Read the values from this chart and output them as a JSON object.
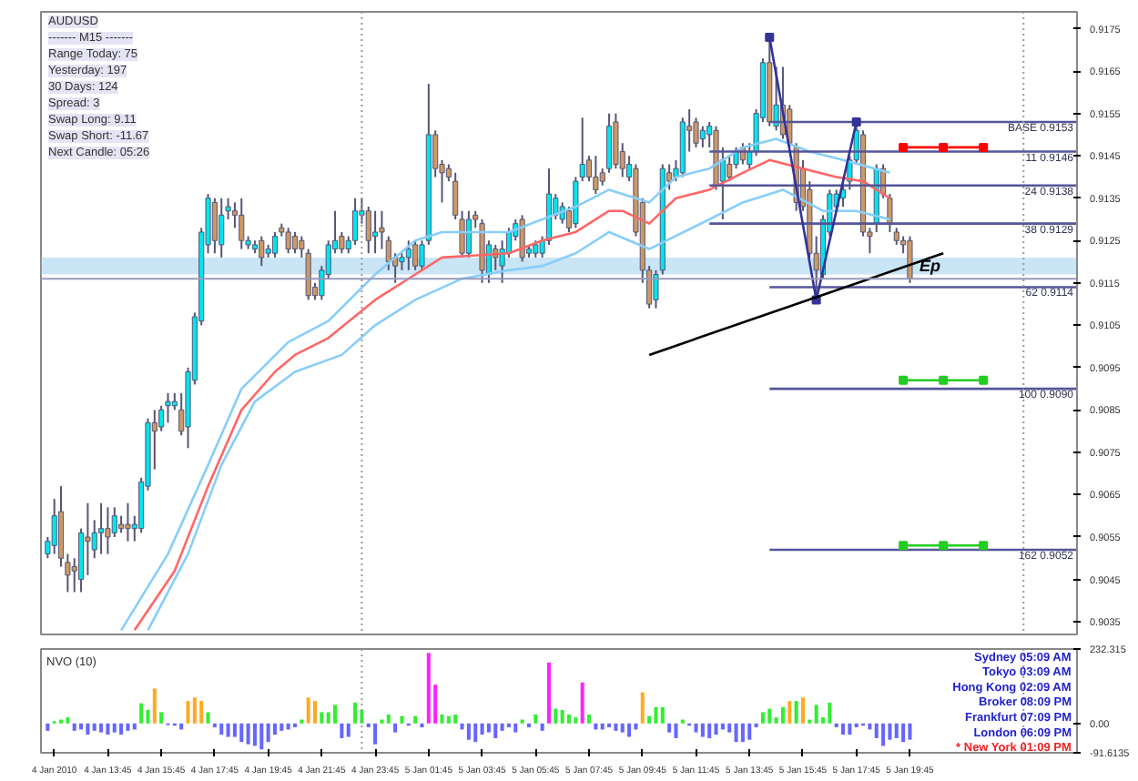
{
  "chart_data": [
    {
      "type": "candlestick",
      "x": [
        "2010-01-04T11:30",
        "2010-01-04T11:45",
        "2010-01-04T12:00",
        "2010-01-04T12:15",
        "2010-01-04T12:30",
        "2010-01-04T12:45",
        "2010-01-04T13:00",
        "2010-01-04T13:15",
        "2010-01-04T13:30",
        "2010-01-04T13:45",
        "2010-01-04T14:00",
        "2010-01-04T14:15",
        "2010-01-04T14:30",
        "2010-01-04T14:45",
        "2010-01-04T15:00",
        "2010-01-04T15:15",
        "2010-01-04T15:30",
        "2010-01-04T15:45",
        "2010-01-04T16:00",
        "2010-01-04T16:15",
        "2010-01-04T16:30",
        "2010-01-04T16:45",
        "2010-01-04T17:00",
        "2010-01-04T17:15",
        "2010-01-04T17:30",
        "2010-01-04T17:45",
        "2010-01-04T18:00",
        "2010-01-04T18:15",
        "2010-01-04T18:30",
        "2010-01-04T18:45",
        "2010-01-04T19:00",
        "2010-01-04T19:15",
        "2010-01-04T19:30",
        "2010-01-04T19:45",
        "2010-01-04T20:00",
        "2010-01-04T20:15",
        "2010-01-04T20:30",
        "2010-01-04T20:45",
        "2010-01-04T21:00",
        "2010-01-04T21:15",
        "2010-01-04T21:30",
        "2010-01-04T21:45",
        "2010-01-04T22:00",
        "2010-01-04T22:15",
        "2010-01-04T22:30",
        "2010-01-04T22:45",
        "2010-01-04T23:00",
        "2010-01-04T23:15",
        "2010-01-04T23:30",
        "2010-01-04T23:45",
        "2010-01-05T00:00",
        "2010-01-05T00:15",
        "2010-01-05T00:30",
        "2010-01-05T00:45",
        "2010-01-05T01:00",
        "2010-01-05T01:15",
        "2010-01-05T01:30",
        "2010-01-05T01:45",
        "2010-01-05T02:00",
        "2010-01-05T02:15",
        "2010-01-05T02:30",
        "2010-01-05T02:45",
        "2010-01-05T03:00",
        "2010-01-05T03:15",
        "2010-01-05T03:30",
        "2010-01-05T03:45",
        "2010-01-05T04:00",
        "2010-01-05T04:15",
        "2010-01-05T04:30",
        "2010-01-05T04:45",
        "2010-01-05T05:00",
        "2010-01-05T05:15",
        "2010-01-05T05:30",
        "2010-01-05T05:45",
        "2010-01-05T06:00",
        "2010-01-05T06:15",
        "2010-01-05T06:30",
        "2010-01-05T06:45",
        "2010-01-05T07:00",
        "2010-01-05T07:15",
        "2010-01-05T07:30",
        "2010-01-05T07:45",
        "2010-01-05T08:00",
        "2010-01-05T08:15",
        "2010-01-05T08:30",
        "2010-01-05T08:45",
        "2010-01-05T09:00",
        "2010-01-05T09:15",
        "2010-01-05T09:30",
        "2010-01-05T09:45",
        "2010-01-05T10:00",
        "2010-01-05T10:15",
        "2010-01-05T10:30",
        "2010-01-05T10:45",
        "2010-01-05T11:00",
        "2010-01-05T11:15",
        "2010-01-05T11:30",
        "2010-01-05T11:45",
        "2010-01-05T12:00",
        "2010-01-05T12:15",
        "2010-01-05T12:30",
        "2010-01-05T12:45",
        "2010-01-05T13:00",
        "2010-01-05T13:15",
        "2010-01-05T13:30",
        "2010-01-05T13:45",
        "2010-01-05T14:00",
        "2010-01-05T14:15",
        "2010-01-05T14:30",
        "2010-01-05T14:45",
        "2010-01-05T15:00",
        "2010-01-05T15:15",
        "2010-01-05T15:30",
        "2010-01-05T15:45",
        "2010-01-05T16:00",
        "2010-01-05T16:15",
        "2010-01-05T16:30",
        "2010-01-05T16:45",
        "2010-01-05T17:00",
        "2010-01-05T17:15",
        "2010-01-05T17:30",
        "2010-01-05T17:45",
        "2010-01-05T18:00",
        "2010-01-05T18:15",
        "2010-01-05T18:30",
        "2010-01-05T18:45",
        "2010-01-05T19:00",
        "2010-01-05T19:15",
        "2010-01-05T19:30",
        "2010-01-05T19:45"
      ],
      "ohlc": [
        [
          0.9051,
          0.9055,
          0.905,
          0.9054
        ],
        [
          0.9053,
          0.9064,
          0.9051,
          0.906
        ],
        [
          0.9061,
          0.9067,
          0.9048,
          0.905
        ],
        [
          0.9049,
          0.9051,
          0.9042,
          0.9046
        ],
        [
          0.9048,
          0.905,
          0.9042,
          0.9047
        ],
        [
          0.9045,
          0.9057,
          0.9042,
          0.9056
        ],
        [
          0.9055,
          0.9063,
          0.9046,
          0.9054
        ],
        [
          0.9052,
          0.9059,
          0.905,
          0.9056
        ],
        [
          0.9056,
          0.9063,
          0.9051,
          0.9057
        ],
        [
          0.9057,
          0.9062,
          0.9051,
          0.9055
        ],
        [
          0.9056,
          0.9062,
          0.9055,
          0.906
        ],
        [
          0.9058,
          0.906,
          0.9056,
          0.9057
        ],
        [
          0.9058,
          0.9063,
          0.9054,
          0.9057
        ],
        [
          0.9057,
          0.906,
          0.9054,
          0.9058
        ],
        [
          0.9057,
          0.9069,
          0.9056,
          0.9068
        ],
        [
          0.9067,
          0.9083,
          0.9066,
          0.9082
        ],
        [
          0.9082,
          0.9085,
          0.9071,
          0.908
        ],
        [
          0.9081,
          0.9086,
          0.908,
          0.9085
        ],
        [
          0.9086,
          0.9089,
          0.9082,
          0.9087
        ],
        [
          0.9086,
          0.9089,
          0.9085,
          0.9087
        ],
        [
          0.9085,
          0.9089,
          0.9079,
          0.908
        ],
        [
          0.9081,
          0.9095,
          0.9076,
          0.9094
        ],
        [
          0.9092,
          0.9108,
          0.9091,
          0.9107
        ],
        [
          0.9106,
          0.9128,
          0.9105,
          0.9127
        ],
        [
          0.9124,
          0.9136,
          0.9122,
          0.9135
        ],
        [
          0.9134,
          0.9135,
          0.9122,
          0.9125
        ],
        [
          0.9124,
          0.9135,
          0.9121,
          0.9131
        ],
        [
          0.9132,
          0.9135,
          0.913,
          0.9133
        ],
        [
          0.9132,
          0.9134,
          0.9128,
          0.9131
        ],
        [
          0.9131,
          0.9135,
          0.9123,
          0.9125
        ],
        [
          0.9124,
          0.9126,
          0.9123,
          0.9125
        ],
        [
          0.9123,
          0.9125,
          0.9122,
          0.9124
        ],
        [
          0.9125,
          0.9126,
          0.9119,
          0.9121
        ],
        [
          0.9122,
          0.9124,
          0.9121,
          0.9123
        ],
        [
          0.9122,
          0.9127,
          0.9121,
          0.9126
        ],
        [
          0.9128,
          0.9129,
          0.9126,
          0.9127
        ],
        [
          0.9127,
          0.9128,
          0.9122,
          0.9123
        ],
        [
          0.9126,
          0.9127,
          0.9122,
          0.9123
        ],
        [
          0.9125,
          0.9126,
          0.9121,
          0.9123
        ],
        [
          0.9122,
          0.9123,
          0.9111,
          0.9112
        ],
        [
          0.9114,
          0.9115,
          0.9111,
          0.9112
        ],
        [
          0.9112,
          0.9119,
          0.9111,
          0.9118
        ],
        [
          0.9117,
          0.9125,
          0.9116,
          0.9124
        ],
        [
          0.9123,
          0.9132,
          0.9122,
          0.9125
        ],
        [
          0.9126,
          0.9127,
          0.9122,
          0.9123
        ],
        [
          0.9123,
          0.9126,
          0.9122,
          0.9125
        ],
        [
          0.9125,
          0.9135,
          0.9124,
          0.9132
        ],
        [
          0.9131,
          0.9135,
          0.9129,
          0.9132
        ],
        [
          0.9132,
          0.9133,
          0.9122,
          0.9125
        ],
        [
          0.9126,
          0.9132,
          0.9122,
          0.9127
        ],
        [
          0.9128,
          0.9132,
          0.9123,
          0.9127
        ],
        [
          0.9125,
          0.9126,
          0.9118,
          0.912
        ],
        [
          0.9121,
          0.9122,
          0.9115,
          0.9119
        ],
        [
          0.912,
          0.9122,
          0.9118,
          0.9121
        ],
        [
          0.9121,
          0.9125,
          0.9118,
          0.9123
        ],
        [
          0.9124,
          0.9125,
          0.9118,
          0.9119
        ],
        [
          0.9119,
          0.9125,
          0.9118,
          0.9124
        ],
        [
          0.9125,
          0.9162,
          0.9124,
          0.915
        ],
        [
          0.915,
          0.9151,
          0.914,
          0.9142
        ],
        [
          0.9143,
          0.9144,
          0.9134,
          0.9141
        ],
        [
          0.9142,
          0.9143,
          0.9139,
          0.914
        ],
        [
          0.9139,
          0.9141,
          0.913,
          0.9131
        ],
        [
          0.913,
          0.9132,
          0.9121,
          0.9122
        ],
        [
          0.9122,
          0.9132,
          0.9121,
          0.913
        ],
        [
          0.9131,
          0.9132,
          0.9128,
          0.913
        ],
        [
          0.9129,
          0.913,
          0.9115,
          0.9118
        ],
        [
          0.9117,
          0.9125,
          0.9115,
          0.9124
        ],
        [
          0.9123,
          0.9124,
          0.9118,
          0.9121
        ],
        [
          0.9119,
          0.9125,
          0.9115,
          0.9123
        ],
        [
          0.9122,
          0.9128,
          0.9121,
          0.9127
        ],
        [
          0.9126,
          0.913,
          0.9125,
          0.9129
        ],
        [
          0.913,
          0.9131,
          0.912,
          0.9121
        ],
        [
          0.9122,
          0.9124,
          0.9121,
          0.9123
        ],
        [
          0.9122,
          0.9125,
          0.9121,
          0.9124
        ],
        [
          0.9122,
          0.9126,
          0.9121,
          0.9125
        ],
        [
          0.9125,
          0.9142,
          0.9124,
          0.9136
        ],
        [
          0.9131,
          0.9136,
          0.913,
          0.9135
        ],
        [
          0.913,
          0.9134,
          0.9129,
          0.9133
        ],
        [
          0.9132,
          0.9133,
          0.9127,
          0.9128
        ],
        [
          0.9129,
          0.914,
          0.9128,
          0.9139
        ],
        [
          0.914,
          0.9154,
          0.9139,
          0.9143
        ],
        [
          0.9144,
          0.9145,
          0.9139,
          0.914
        ],
        [
          0.914,
          0.9145,
          0.9136,
          0.9137
        ],
        [
          0.9141,
          0.9142,
          0.9138,
          0.9139
        ],
        [
          0.9142,
          0.9155,
          0.9141,
          0.9152
        ],
        [
          0.9153,
          0.9155,
          0.9142,
          0.9143
        ],
        [
          0.9146,
          0.9148,
          0.914,
          0.9142
        ],
        [
          0.914,
          0.9145,
          0.9139,
          0.9143
        ],
        [
          0.9142,
          0.9143,
          0.9126,
          0.9127
        ],
        [
          0.9134,
          0.9135,
          0.9115,
          0.9118
        ],
        [
          0.9118,
          0.9119,
          0.9109,
          0.911
        ],
        [
          0.9111,
          0.9118,
          0.9109,
          0.9117
        ],
        [
          0.9118,
          0.9143,
          0.9117,
          0.9142
        ],
        [
          0.9141,
          0.9143,
          0.9137,
          0.9139
        ],
        [
          0.914,
          0.9144,
          0.9139,
          0.9142
        ],
        [
          0.9141,
          0.9154,
          0.914,
          0.9153
        ],
        [
          0.9152,
          0.9156,
          0.9146,
          0.9151
        ],
        [
          0.9153,
          0.9154,
          0.9147,
          0.9148
        ],
        [
          0.9149,
          0.9152,
          0.9147,
          0.9151
        ],
        [
          0.915,
          0.9153,
          0.9147,
          0.9152
        ],
        [
          0.9151,
          0.9152,
          0.9137,
          0.9138
        ],
        [
          0.9139,
          0.9147,
          0.913,
          0.9144
        ],
        [
          0.9143,
          0.9145,
          0.9139,
          0.914
        ],
        [
          0.9143,
          0.9147,
          0.9142,
          0.9146
        ],
        [
          0.9147,
          0.9148,
          0.9143,
          0.9144
        ],
        [
          0.9143,
          0.9148,
          0.9142,
          0.9146
        ],
        [
          0.9146,
          0.9156,
          0.9145,
          0.9155
        ],
        [
          0.9154,
          0.9168,
          0.9153,
          0.9167
        ],
        [
          0.9167,
          0.9173,
          0.9152,
          0.9153
        ],
        [
          0.9152,
          0.9166,
          0.9151,
          0.9157
        ],
        [
          0.9157,
          0.9166,
          0.9149,
          0.915
        ],
        [
          0.9156,
          0.9157,
          0.9147,
          0.9148
        ],
        [
          0.9147,
          0.9148,
          0.9132,
          0.9134
        ],
        [
          0.9142,
          0.9144,
          0.9132,
          0.9133
        ],
        [
          0.9137,
          0.9139,
          0.9121,
          0.9122
        ],
        [
          0.9122,
          0.9126,
          0.9111,
          0.9118
        ],
        [
          0.9117,
          0.9131,
          0.9116,
          0.913
        ],
        [
          0.9127,
          0.9137,
          0.9126,
          0.9136
        ],
        [
          0.9133,
          0.9137,
          0.9132,
          0.9136
        ],
        [
          0.9135,
          0.9139,
          0.9133,
          0.9137
        ],
        [
          0.9139,
          0.9145,
          0.9137,
          0.9144
        ],
        [
          0.9144,
          0.9152,
          0.9143,
          0.9151
        ],
        [
          0.915,
          0.9151,
          0.9126,
          0.9127
        ],
        [
          0.9127,
          0.9128,
          0.9122,
          0.9126
        ],
        [
          0.9129,
          0.9143,
          0.9127,
          0.9142
        ],
        [
          0.9142,
          0.9143,
          0.9135,
          0.9136
        ],
        [
          0.9135,
          0.9136,
          0.9127,
          0.9129
        ],
        [
          0.9127,
          0.9128,
          0.9124,
          0.9125
        ],
        [
          0.9125,
          0.9126,
          0.9122,
          0.9124
        ],
        [
          0.9125,
          0.9126,
          0.9115,
          0.9116
        ]
      ],
      "colors": [
        "#00e5ee",
        "#00e5ee",
        "#cc9966",
        "#cc9966",
        "#cc9966",
        "#00e5ee",
        "#cc9966",
        "#00e5ee",
        "#00e5ee",
        "#cc9966",
        "#00e5ee",
        "#cc9966",
        "#cc9966",
        "#00e5ee",
        "#00e5ee",
        "#00e5ee",
        "#cc9966",
        "#00e5ee",
        "#00e5ee",
        "#00e5ee",
        "#cc9966",
        "#00e5ee",
        "#00e5ee",
        "#00e5ee",
        "#00e5ee",
        "#cc9966",
        "#00e5ee",
        "#00e5ee",
        "#cc9966",
        "#cc9966",
        "#00e5ee",
        "#00e5ee",
        "#cc9966",
        "#00e5ee",
        "#00e5ee",
        "#cc9966",
        "#cc9966",
        "#cc9966",
        "#cc9966",
        "#cc9966",
        "#cc9966",
        "#00e5ee",
        "#00e5ee",
        "#00e5ee",
        "#cc9966",
        "#00e5ee",
        "#00e5ee",
        "#00e5ee",
        "#cc9966",
        "#00e5ee",
        "#cc9966",
        "#cc9966",
        "#cc9966",
        "#00e5ee",
        "#00e5ee",
        "#cc9966",
        "#00e5ee",
        "#00e5ee",
        "#cc9966",
        "#cc9966",
        "#cc9966",
        "#cc9966",
        "#cc9966",
        "#00e5ee",
        "#cc9966",
        "#cc9966",
        "#00e5ee",
        "#cc9966",
        "#00e5ee",
        "#00e5ee",
        "#00e5ee",
        "#cc9966",
        "#00e5ee",
        "#00e5ee",
        "#00e5ee",
        "#00e5ee",
        "#00e5ee",
        "#00e5ee",
        "#cc9966",
        "#00e5ee",
        "#00e5ee",
        "#cc9966",
        "#cc9966",
        "#cc9966",
        "#00e5ee",
        "#cc9966",
        "#cc9966",
        "#00e5ee",
        "#cc9966",
        "#cc9966",
        "#cc9966",
        "#00e5ee",
        "#00e5ee",
        "#cc9966",
        "#00e5ee",
        "#00e5ee",
        "#cc9966",
        "#cc9966",
        "#00e5ee",
        "#00e5ee",
        "#cc9966",
        "#00e5ee",
        "#cc9966",
        "#00e5ee",
        "#cc9966",
        "#00e5ee",
        "#00e5ee",
        "#00e5ee",
        "#cc9966",
        "#00e5ee",
        "#cc9966",
        "#cc9966",
        "#cc9966",
        "#cc9966",
        "#cc9966",
        "#cc9966",
        "#00e5ee",
        "#00e5ee",
        "#00e5ee",
        "#00e5ee",
        "#00e5ee",
        "#00e5ee",
        "#cc9966",
        "#cc9966",
        "#00e5ee",
        "#cc9966",
        "#cc9966",
        "#cc9966",
        "#cc9966",
        "#cc9966"
      ],
      "xlim": [
        "2010-01-04T11:15",
        "2010-01-06T02:00"
      ],
      "ylim": [
        0.9032,
        0.9179
      ],
      "yticks": [
        0.9035,
        0.9045,
        0.9055,
        0.9065,
        0.9075,
        0.9085,
        0.9095,
        0.9105,
        0.9115,
        0.9125,
        0.9135,
        0.9145,
        0.9155,
        0.9165,
        0.9175
      ],
      "tick_labels": "y",
      "series": [
        {
          "type": "line",
          "color": "#87cefa",
          "x": [
            "2010-01-04T14:15",
            "2010-01-04T16:00",
            "2010-01-04T17:30",
            "2010-01-04T18:45",
            "2010-01-04T20:30",
            "2010-01-04T22:00",
            "2010-01-04T23:45",
            "2010-01-05T01:15",
            "2010-01-05T02:15",
            "2010-01-05T04:45",
            "2010-01-05T06:00",
            "2010-01-05T07:15",
            "2010-01-05T08:30",
            "2010-01-05T10:00",
            "2010-01-05T11:00",
            "2010-01-05T12:15",
            "2010-01-05T13:30",
            "2010-01-05T14:45",
            "2010-01-05T16:00",
            "2010-01-05T17:15",
            "2010-01-05T19:00"
          ],
          "values": [
            0.9033,
            0.9051,
            0.9072,
            0.909,
            0.9101,
            0.9106,
            0.9117,
            0.9125,
            0.9127,
            0.9127,
            0.913,
            0.9133,
            0.9137,
            0.9134,
            0.914,
            0.9142,
            0.9147,
            0.9149,
            0.9146,
            0.9144,
            0.9141
          ]
        },
        {
          "type": "line",
          "color": "#ff6666",
          "x": [
            "2010-01-04T14:45",
            "2010-01-04T16:15",
            "2010-01-04T17:30",
            "2010-01-04T18:45",
            "2010-01-04T20:00",
            "2010-01-04T20:45",
            "2010-01-04T22:00",
            "2010-01-04T23:45",
            "2010-01-05T01:15",
            "2010-01-05T02:15",
            "2010-01-05T04:45",
            "2010-01-05T06:00",
            "2010-01-05T07:15",
            "2010-01-05T08:30",
            "2010-01-05T09:00",
            "2010-01-05T10:00",
            "2010-01-05T11:00",
            "2010-01-05T12:15",
            "2010-01-05T13:30",
            "2010-01-05T14:30",
            "2010-01-05T15:45",
            "2010-01-05T17:00",
            "2010-01-05T18:00",
            "2010-01-05T19:00"
          ],
          "values": [
            0.9033,
            0.9047,
            0.9067,
            0.9085,
            0.9094,
            0.9098,
            0.9102,
            0.9111,
            0.9117,
            0.9121,
            0.9122,
            0.9125,
            0.9127,
            0.9132,
            0.9132,
            0.9129,
            0.9135,
            0.9137,
            0.9141,
            0.9144,
            0.9142,
            0.914,
            0.9139,
            0.9135
          ]
        },
        {
          "type": "line",
          "color": "#87cefa",
          "x": [
            "2010-01-04T15:15",
            "2010-01-04T16:45",
            "2010-01-04T18:00",
            "2010-01-04T19:15",
            "2010-01-04T20:45",
            "2010-01-04T22:30",
            "2010-01-04T23:45",
            "2010-01-05T01:15",
            "2010-01-05T03:00",
            "2010-01-05T04:45",
            "2010-01-05T06:00",
            "2010-01-05T07:15",
            "2010-01-05T08:30",
            "2010-01-05T10:00",
            "2010-01-05T12:15",
            "2010-01-05T13:30",
            "2010-01-05T15:00",
            "2010-01-05T16:30",
            "2010-01-05T17:45",
            "2010-01-05T19:00"
          ],
          "values": [
            0.9033,
            0.9051,
            0.9072,
            0.9087,
            0.9094,
            0.9098,
            0.9105,
            0.9111,
            0.9116,
            0.9118,
            0.9119,
            0.9122,
            0.9127,
            0.9123,
            0.913,
            0.9134,
            0.9137,
            0.9132,
            0.9132,
            0.913
          ]
        },
        {
          "type": "line",
          "name": "BASE 0.9153",
          "color": "#555599",
          "x": [
            "2010-01-05T14:30",
            "2010-01-06T02:00"
          ],
          "values": [
            0.9153,
            0.9153
          ]
        },
        {
          "type": "line",
          "name": "11 0.9146",
          "color": "#555599",
          "x": [
            "2010-01-05T12:15",
            "2010-01-06T02:00"
          ],
          "values": [
            0.9146,
            0.9146
          ]
        },
        {
          "type": "line",
          "name": "24 0.9138",
          "color": "#555599",
          "x": [
            "2010-01-05T12:15",
            "2010-01-06T02:00"
          ],
          "values": [
            0.9138,
            0.9138
          ]
        },
        {
          "type": "line",
          "name": "38 0.9129",
          "color": "#555599",
          "x": [
            "2010-01-05T12:15",
            "2010-01-06T02:00"
          ],
          "values": [
            0.9129,
            0.9129
          ]
        },
        {
          "type": "line",
          "name": "62 0.9114",
          "color": "#555599",
          "x": [
            "2010-01-05T14:30",
            "2010-01-06T02:00"
          ],
          "values": [
            0.9114,
            0.9114
          ]
        },
        {
          "type": "line",
          "name": "100 0.9090",
          "color": "#555599",
          "x": [
            "2010-01-05T14:30",
            "2010-01-06T02:00"
          ],
          "values": [
            0.909,
            0.909
          ]
        },
        {
          "type": "line",
          "name": "162 0.9052",
          "color": "#555599",
          "x": [
            "2010-01-05T14:30",
            "2010-01-06T02:00"
          ],
          "values": [
            0.9052,
            0.9052
          ]
        },
        {
          "type": "line",
          "color": "#ff0000",
          "marker": "square",
          "x": [
            "2010-01-05T19:30",
            "2010-01-05T21:00",
            "2010-01-05T22:30"
          ],
          "values": [
            0.9147,
            0.9147,
            0.9147
          ]
        },
        {
          "type": "line",
          "color": "#22cc22",
          "marker": "square",
          "x": [
            "2010-01-05T19:30",
            "2010-01-05T21:00",
            "2010-01-05T22:30"
          ],
          "values": [
            0.9092,
            0.9092,
            0.9092
          ]
        },
        {
          "type": "line",
          "color": "#22cc22",
          "marker": "square",
          "x": [
            "2010-01-05T19:30",
            "2010-01-05T21:00",
            "2010-01-05T22:30"
          ],
          "values": [
            0.9053,
            0.9053,
            0.9053
          ]
        },
        {
          "type": "line",
          "color": "#333399",
          "marker": "square",
          "x": [
            "2010-01-05T14:30",
            "2010-01-05T16:15",
            "2010-01-05T17:45"
          ],
          "values": [
            0.9173,
            0.9111,
            0.9153
          ]
        },
        {
          "type": "line",
          "color": "#000000",
          "x": [
            "2010-01-05T10:00",
            "2010-01-05T21:00"
          ],
          "values": [
            0.9098,
            0.9122
          ]
        }
      ],
      "bands": [
        {
          "axis": "y",
          "from": 0.9117,
          "to": 0.9121,
          "label": null,
          "color": "#87c5ea"
        }
      ],
      "ref_lines": [
        {
          "axis": "y",
          "value": 0.9116,
          "label": null,
          "color": "#9999bb"
        },
        {
          "axis": "x",
          "value": "2010-01-04T23:15",
          "label": null,
          "color": "#999999",
          "line_style": "dotted"
        },
        {
          "axis": "x",
          "value": "2010-01-06T00:00",
          "label": null,
          "color": "#999999",
          "line_style": "dotted"
        }
      ],
      "annotations": [
        "AUDUSD",
        "------- M15 -------",
        "Range Today: 75",
        "Yesterday: 197",
        "30 Days: 124",
        "Spread: 3",
        "Swap Long: 9.11",
        "Swap Short: -11.67",
        "Next Candle: 05:26",
        {
          "text": "Ep",
          "x": "2010-01-05T20:30",
          "y": 0.9119
        }
      ]
    },
    {
      "type": "bar",
      "title": "NVO (10)",
      "x": [
        "2010-01-04T11:30",
        "2010-01-04T11:45",
        "2010-01-04T12:00",
        "2010-01-04T12:15",
        "2010-01-04T12:30",
        "2010-01-04T12:45",
        "2010-01-04T13:00",
        "2010-01-04T13:15",
        "2010-01-04T13:30",
        "2010-01-04T13:45",
        "2010-01-04T14:00",
        "2010-01-04T14:15",
        "2010-01-04T14:30",
        "2010-01-04T14:45",
        "2010-01-04T15:00",
        "2010-01-04T15:15",
        "2010-01-04T15:30",
        "2010-01-04T15:45",
        "2010-01-04T16:00",
        "2010-01-04T16:15",
        "2010-01-04T16:30",
        "2010-01-04T16:45",
        "2010-01-04T17:00",
        "2010-01-04T17:15",
        "2010-01-04T17:30",
        "2010-01-04T17:45",
        "2010-01-04T18:00",
        "2010-01-04T18:15",
        "2010-01-04T18:30",
        "2010-01-04T18:45",
        "2010-01-04T19:00",
        "2010-01-04T19:15",
        "2010-01-04T19:30",
        "2010-01-04T19:45",
        "2010-01-04T20:00",
        "2010-01-04T20:15",
        "2010-01-04T20:30",
        "2010-01-04T20:45",
        "2010-01-04T21:00",
        "2010-01-04T21:15",
        "2010-01-04T21:30",
        "2010-01-04T21:45",
        "2010-01-04T22:00",
        "2010-01-04T22:15",
        "2010-01-04T22:30",
        "2010-01-04T22:45",
        "2010-01-04T23:00",
        "2010-01-04T23:15",
        "2010-01-04T23:30",
        "2010-01-04T23:45",
        "2010-01-05T00:00",
        "2010-01-05T00:15",
        "2010-01-05T00:30",
        "2010-01-05T00:45",
        "2010-01-05T01:00",
        "2010-01-05T01:15",
        "2010-01-05T01:30",
        "2010-01-05T01:45",
        "2010-01-05T02:00",
        "2010-01-05T02:15",
        "2010-01-05T02:30",
        "2010-01-05T02:45",
        "2010-01-05T03:00",
        "2010-01-05T03:15",
        "2010-01-05T03:30",
        "2010-01-05T03:45",
        "2010-01-05T04:00",
        "2010-01-05T04:15",
        "2010-01-05T04:30",
        "2010-01-05T04:45",
        "2010-01-05T05:00",
        "2010-01-05T05:15",
        "2010-01-05T05:30",
        "2010-01-05T05:45",
        "2010-01-05T06:00",
        "2010-01-05T06:15",
        "2010-01-05T06:30",
        "2010-01-05T06:45",
        "2010-01-05T07:00",
        "2010-01-05T07:15",
        "2010-01-05T07:30",
        "2010-01-05T07:45",
        "2010-01-05T08:00",
        "2010-01-05T08:15",
        "2010-01-05T08:30",
        "2010-01-05T08:45",
        "2010-01-05T09:00",
        "2010-01-05T09:15",
        "2010-01-05T09:30",
        "2010-01-05T09:45",
        "2010-01-05T10:00",
        "2010-01-05T10:15",
        "2010-01-05T10:30",
        "2010-01-05T10:45",
        "2010-01-05T11:00",
        "2010-01-05T11:15",
        "2010-01-05T11:30",
        "2010-01-05T11:45",
        "2010-01-05T12:00",
        "2010-01-05T12:15",
        "2010-01-05T12:30",
        "2010-01-05T12:45",
        "2010-01-05T13:00",
        "2010-01-05T13:15",
        "2010-01-05T13:30",
        "2010-01-05T13:45",
        "2010-01-05T14:00",
        "2010-01-05T14:15",
        "2010-01-05T14:30",
        "2010-01-05T14:45",
        "2010-01-05T15:00",
        "2010-01-05T15:15",
        "2010-01-05T15:30",
        "2010-01-05T15:45",
        "2010-01-05T16:00",
        "2010-01-05T16:15",
        "2010-01-05T16:30",
        "2010-01-05T16:45",
        "2010-01-05T17:00",
        "2010-01-05T17:15",
        "2010-01-05T17:30",
        "2010-01-05T17:45",
        "2010-01-05T18:00",
        "2010-01-05T18:15",
        "2010-01-05T18:30",
        "2010-01-05T18:45",
        "2010-01-05T19:00",
        "2010-01-05T19:15",
        "2010-01-05T19:30",
        "2010-01-05T19:45"
      ],
      "values": [
        -23,
        7,
        12,
        19,
        -23,
        -19,
        -35,
        -23,
        -28,
        -35,
        -28,
        -35,
        -23,
        -19,
        63,
        42,
        109,
        35,
        -5,
        -7,
        -19,
        70,
        81,
        70,
        35,
        -12,
        -35,
        -42,
        -42,
        -58,
        -65,
        -70,
        -81,
        -58,
        -35,
        -23,
        -19,
        -12,
        12,
        81,
        70,
        35,
        35,
        58,
        -46,
        -42,
        65,
        42,
        -12,
        -65,
        12,
        28,
        -28,
        23,
        -7,
        23,
        -12,
        220,
        121,
        28,
        23,
        28,
        -19,
        -51,
        -58,
        -35,
        -28,
        -46,
        -23,
        -12,
        -28,
        12,
        -12,
        28,
        -23,
        190,
        46,
        42,
        28,
        19,
        128,
        28,
        -19,
        -19,
        -12,
        -23,
        -28,
        -42,
        -19,
        97,
        23,
        51,
        51,
        -28,
        -46,
        12,
        -7,
        -28,
        -42,
        -46,
        -35,
        -19,
        -28,
        -58,
        -58,
        -51,
        -12,
        35,
        46,
        19,
        51,
        70,
        70,
        81,
        12,
        58,
        19,
        65,
        -12,
        -35,
        -35,
        -12,
        -7,
        -19,
        -46,
        -70,
        -51,
        -46,
        -58,
        -51
      ],
      "colors": [
        "#6666ff",
        "#33ee33",
        "#33ee33",
        "#33ee33",
        "#6666ff",
        "#6666ff",
        "#6666ff",
        "#6666ff",
        "#6666ff",
        "#6666ff",
        "#6666ff",
        "#6666ff",
        "#6666ff",
        "#6666ff",
        "#33ee33",
        "#33ee33",
        "#ffaa22",
        "#33ee33",
        "#6666ff",
        "#6666ff",
        "#6666ff",
        "#ffaa22",
        "#ffaa22",
        "#ffaa22",
        "#33ee33",
        "#6666ff",
        "#6666ff",
        "#6666ff",
        "#6666ff",
        "#6666ff",
        "#6666ff",
        "#6666ff",
        "#6666ff",
        "#6666ff",
        "#6666ff",
        "#6666ff",
        "#6666ff",
        "#6666ff",
        "#33ee33",
        "#ffaa22",
        "#ffaa22",
        "#33ee33",
        "#33ee33",
        "#33ee33",
        "#6666ff",
        "#6666ff",
        "#33ee33",
        "#33ee33",
        "#6666ff",
        "#6666ff",
        "#33ee33",
        "#33ee33",
        "#6666ff",
        "#33ee33",
        "#6666ff",
        "#33ee33",
        "#6666ff",
        "#ff22ff",
        "#ff22ff",
        "#33ee33",
        "#33ee33",
        "#33ee33",
        "#6666ff",
        "#6666ff",
        "#6666ff",
        "#6666ff",
        "#6666ff",
        "#6666ff",
        "#6666ff",
        "#6666ff",
        "#6666ff",
        "#33ee33",
        "#6666ff",
        "#33ee33",
        "#6666ff",
        "#ff22ff",
        "#33ee33",
        "#33ee33",
        "#33ee33",
        "#33ee33",
        "#ff22ff",
        "#33ee33",
        "#6666ff",
        "#6666ff",
        "#6666ff",
        "#6666ff",
        "#6666ff",
        "#6666ff",
        "#6666ff",
        "#ffaa22",
        "#33ee33",
        "#33ee33",
        "#33ee33",
        "#6666ff",
        "#6666ff",
        "#33ee33",
        "#6666ff",
        "#6666ff",
        "#6666ff",
        "#6666ff",
        "#6666ff",
        "#6666ff",
        "#6666ff",
        "#6666ff",
        "#6666ff",
        "#6666ff",
        "#6666ff",
        "#33ee33",
        "#33ee33",
        "#33ee33",
        "#33ee33",
        "#ffaa22",
        "#33ee33",
        "#ffaa22",
        "#33ee33",
        "#33ee33",
        "#33ee33",
        "#33ee33",
        "#6666ff",
        "#6666ff",
        "#6666ff",
        "#6666ff",
        "#6666ff",
        "#6666ff",
        "#6666ff",
        "#6666ff",
        "#6666ff",
        "#6666ff",
        "#6666ff",
        "#6666ff"
      ],
      "xlim": [
        "2010-01-04T11:15",
        "2010-01-06T02:00"
      ],
      "ylim": [
        -91.6135,
        232.315
      ],
      "yticks": [
        {
          "value": -91.6135,
          "label": "-91.6135"
        },
        {
          "value": 0,
          "label": "0.00"
        },
        {
          "value": 232.315,
          "label": "232.315"
        }
      ],
      "xticks": [
        {
          "value": "2010-01-04T11:45",
          "label": "4 Jan 2010"
        },
        {
          "value": "2010-01-04T13:45",
          "label": "4 Jan 13:45"
        },
        {
          "value": "2010-01-04T15:45",
          "label": "4 Jan 15:45"
        },
        {
          "value": "2010-01-04T17:45",
          "label": "4 Jan 17:45"
        },
        {
          "value": "2010-01-04T19:45",
          "label": "4 Jan 19:45"
        },
        {
          "value": "2010-01-04T21:45",
          "label": "4 Jan 21:45"
        },
        {
          "value": "2010-01-04T23:45",
          "label": "4 Jan 23:45"
        },
        {
          "value": "2010-01-05T01:45",
          "label": "5 Jan 01:45"
        },
        {
          "value": "2010-01-05T03:45",
          "label": "5 Jan 03:45"
        },
        {
          "value": "2010-01-05T05:45",
          "label": "5 Jan 05:45"
        },
        {
          "value": "2010-01-05T07:45",
          "label": "5 Jan 07:45"
        },
        {
          "value": "2010-01-05T09:45",
          "label": "5 Jan 09:45"
        },
        {
          "value": "2010-01-05T11:45",
          "label": "5 Jan 11:45"
        },
        {
          "value": "2010-01-05T13:45",
          "label": "5 Jan 13:45"
        },
        {
          "value": "2010-01-05T15:45",
          "label": "5 Jan 15:45"
        },
        {
          "value": "2010-01-05T17:45",
          "label": "5 Jan 17:45"
        },
        {
          "value": "2010-01-05T19:45",
          "label": "5 Jan 19:45"
        }
      ],
      "ref_lines": [
        {
          "axis": "x",
          "value": "2010-01-04T23:15",
          "label": null,
          "color": "#999999",
          "line_style": "dotted"
        },
        {
          "axis": "x",
          "value": "2010-01-06T00:00",
          "label": null,
          "color": "#999999",
          "line_style": "dotted"
        }
      ],
      "annotations": [
        "Sydney 05:09 AM",
        "Tokyo 03:09 AM",
        "Hong Kong 02:09 AM",
        "Broker 08:09 PM",
        "Frankfurt 07:09 PM",
        "London 06:09 PM",
        "* New York 01:09 PM"
      ]
    }
  ]
}
